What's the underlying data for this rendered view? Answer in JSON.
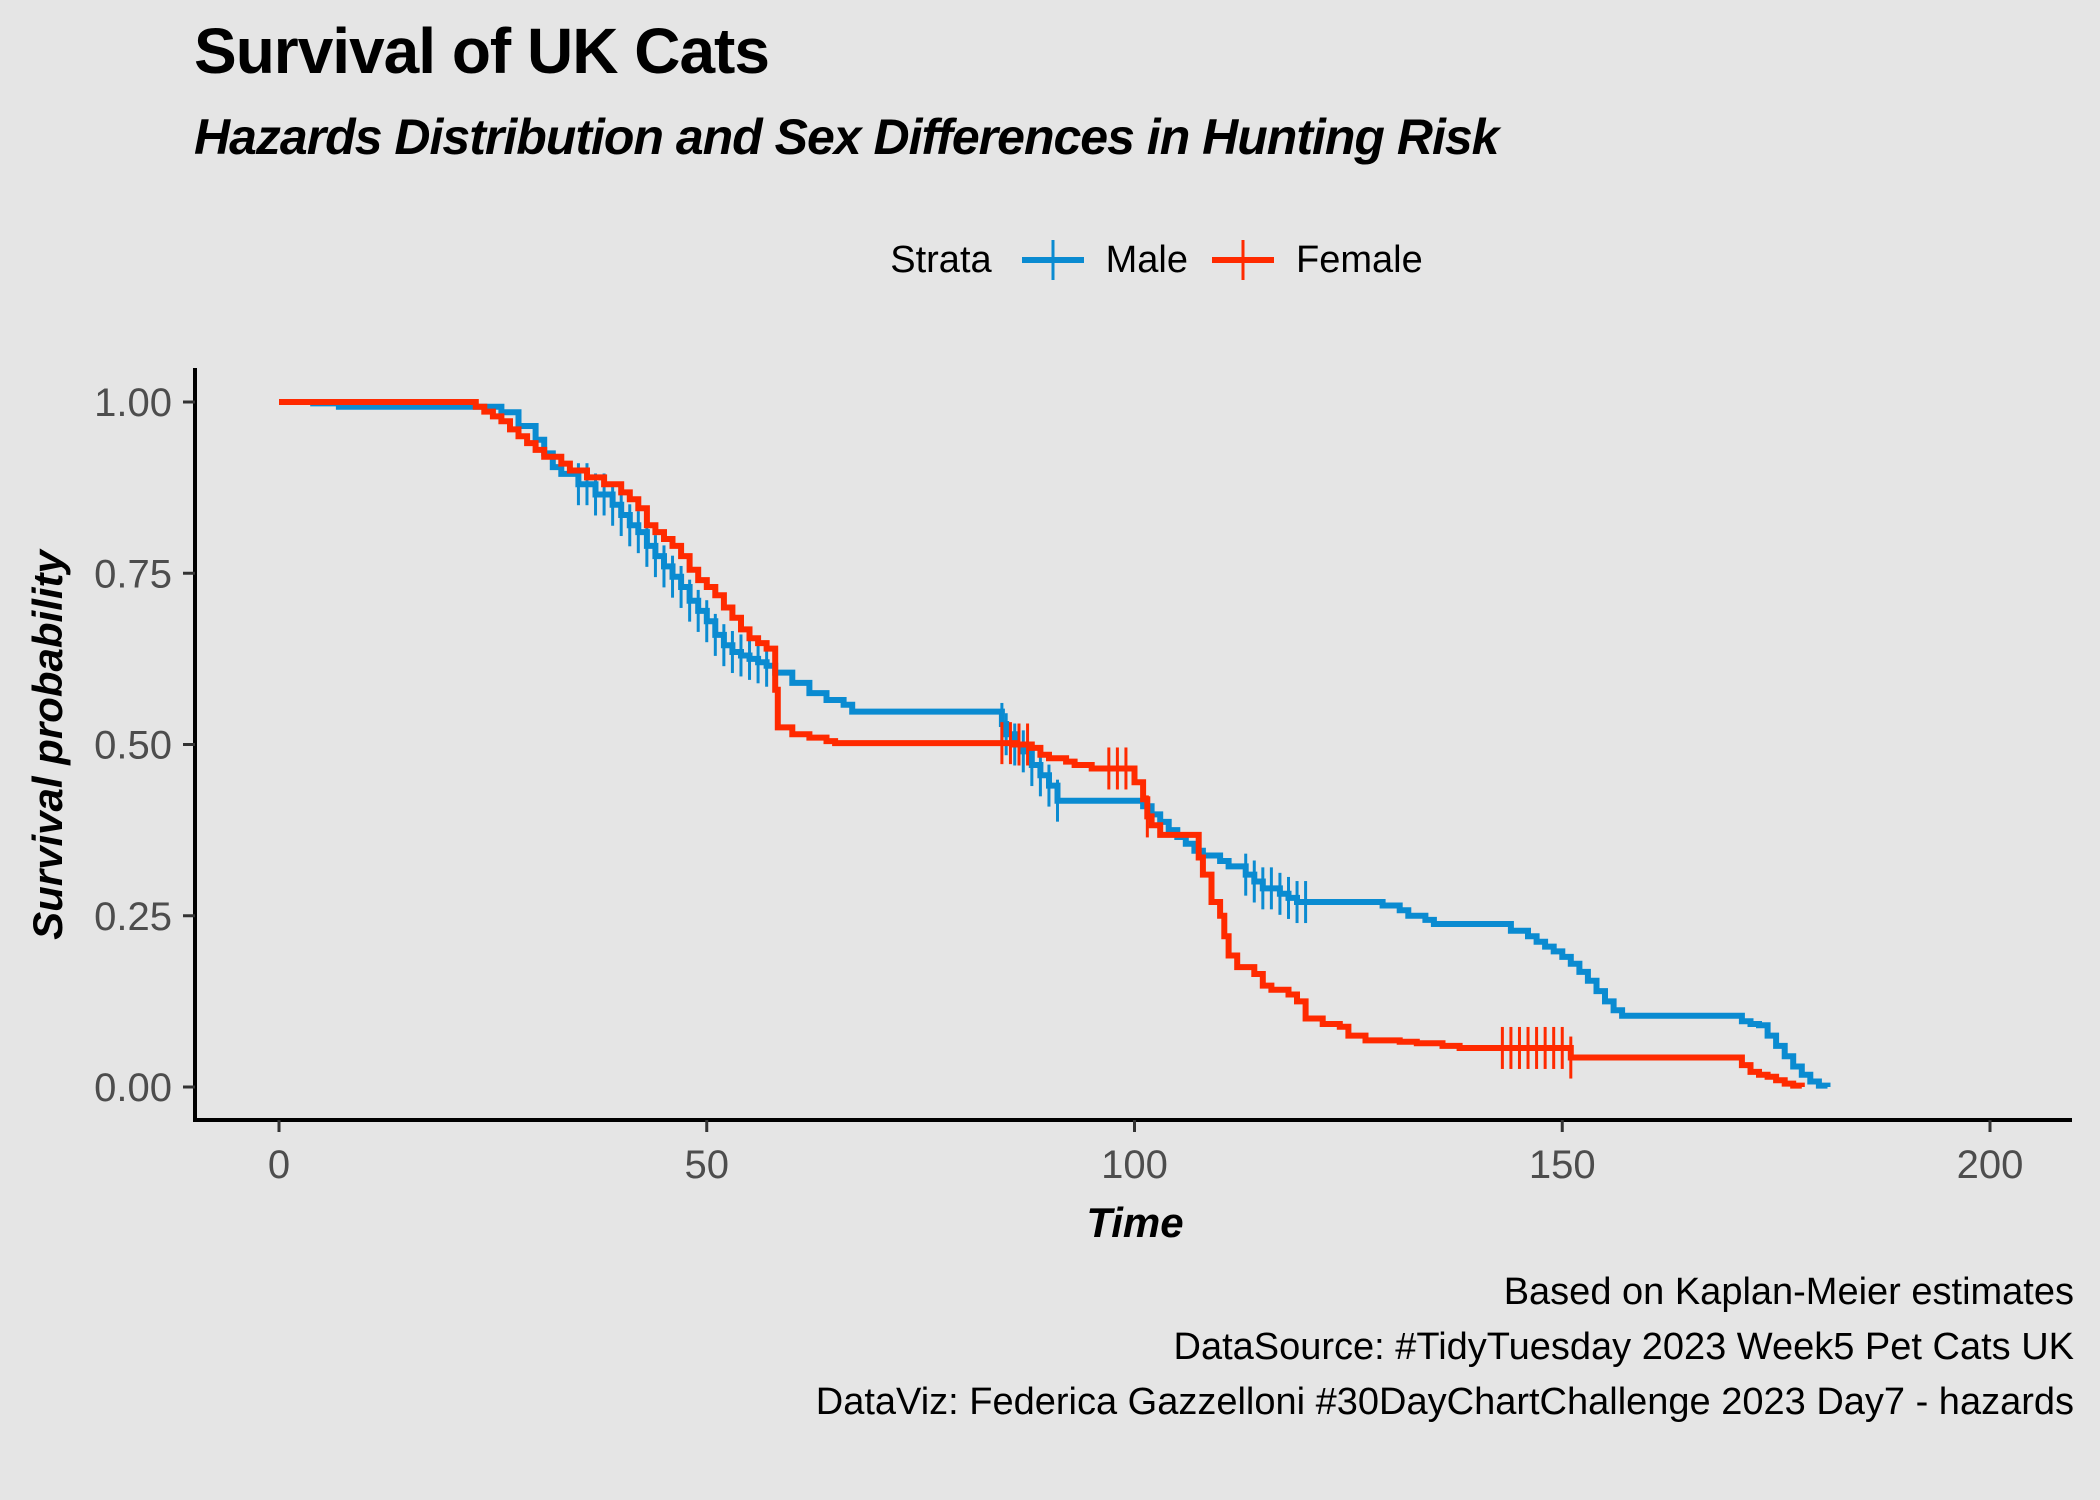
{
  "header": {
    "title": "Survival of UK Cats",
    "subtitle": "Hazards Distribution and Sex Differences in Hunting Risk"
  },
  "legend": {
    "title": "Strata",
    "items": [
      {
        "label": "Male",
        "color": "#0A8BD1"
      },
      {
        "label": "Female",
        "color": "#FF2A00"
      }
    ]
  },
  "caption": {
    "line1": "Based on Kaplan-Meier estimates",
    "line2": "DataSource: #TidyTuesday 2023 Week5 Pet Cats UK",
    "line3": "DataViz: Federica Gazzelloni #30DayChartChallenge 2023 Day7 - hazards"
  },
  "chart_data": {
    "type": "line",
    "title": "Survival of UK Cats",
    "subtitle": "Hazards Distribution and Sex Differences in Hunting Risk",
    "xlabel": "Time",
    "ylabel": "Survival probability",
    "xlim": [
      -10,
      210
    ],
    "ylim": [
      -0.05,
      1.05
    ],
    "x_ticks": [
      0,
      50,
      100,
      150,
      200
    ],
    "x_tick_labels": [
      "0",
      "50",
      "100",
      "150",
      "200"
    ],
    "y_ticks": [
      0,
      0.25,
      0.5,
      0.75,
      1
    ],
    "y_tick_labels": [
      "0.00",
      "0.25",
      "0.50",
      "0.75",
      "1.00"
    ],
    "grid": false,
    "legend_position": "top",
    "step": true,
    "series": [
      {
        "name": "Male",
        "color": "#0A8BD1",
        "points": [
          [
            0,
            1.0
          ],
          [
            4,
            0.998
          ],
          [
            7,
            0.993
          ],
          [
            22,
            0.993
          ],
          [
            26,
            0.985
          ],
          [
            28,
            0.965
          ],
          [
            30,
            0.945
          ],
          [
            31,
            0.925
          ],
          [
            32,
            0.905
          ],
          [
            33,
            0.895
          ],
          [
            35,
            0.88
          ],
          [
            37,
            0.865
          ],
          [
            39,
            0.85
          ],
          [
            40,
            0.835
          ],
          [
            41,
            0.82
          ],
          [
            42,
            0.81
          ],
          [
            43,
            0.79
          ],
          [
            44,
            0.775
          ],
          [
            45,
            0.76
          ],
          [
            46,
            0.745
          ],
          [
            47,
            0.73
          ],
          [
            48,
            0.71
          ],
          [
            49,
            0.695
          ],
          [
            50,
            0.68
          ],
          [
            51,
            0.66
          ],
          [
            52,
            0.645
          ],
          [
            53,
            0.635
          ],
          [
            54,
            0.63
          ],
          [
            55,
            0.625
          ],
          [
            56,
            0.62
          ],
          [
            57,
            0.615
          ],
          [
            58,
            0.605
          ],
          [
            60,
            0.59
          ],
          [
            62,
            0.575
          ],
          [
            64,
            0.565
          ],
          [
            66,
            0.558
          ],
          [
            67,
            0.548
          ],
          [
            84,
            0.548
          ],
          [
            84.5,
            0.53
          ],
          [
            85,
            0.515
          ],
          [
            86,
            0.5
          ],
          [
            87,
            0.49
          ],
          [
            88,
            0.47
          ],
          [
            89,
            0.455
          ],
          [
            90,
            0.44
          ],
          [
            91,
            0.418
          ],
          [
            100,
            0.418
          ],
          [
            101,
            0.41
          ],
          [
            102,
            0.398
          ],
          [
            103,
            0.387
          ],
          [
            104,
            0.375
          ],
          [
            105,
            0.365
          ],
          [
            106,
            0.355
          ],
          [
            107,
            0.345
          ],
          [
            108,
            0.338
          ],
          [
            110,
            0.33
          ],
          [
            111,
            0.322
          ],
          [
            113,
            0.31
          ],
          [
            114,
            0.3
          ],
          [
            115,
            0.29
          ],
          [
            117,
            0.282
          ],
          [
            118,
            0.276
          ],
          [
            119,
            0.27
          ],
          [
            128,
            0.27
          ],
          [
            129,
            0.265
          ],
          [
            131,
            0.258
          ],
          [
            132,
            0.25
          ],
          [
            134,
            0.244
          ],
          [
            135,
            0.238
          ],
          [
            143,
            0.238
          ],
          [
            144,
            0.228
          ],
          [
            146,
            0.22
          ],
          [
            147,
            0.212
          ],
          [
            148,
            0.205
          ],
          [
            149,
            0.198
          ],
          [
            150,
            0.19
          ],
          [
            151,
            0.18
          ],
          [
            152,
            0.168
          ],
          [
            153,
            0.155
          ],
          [
            154,
            0.14
          ],
          [
            155,
            0.125
          ],
          [
            156,
            0.112
          ],
          [
            157,
            0.104
          ],
          [
            170,
            0.104
          ],
          [
            171,
            0.096
          ],
          [
            172,
            0.092
          ],
          [
            173,
            0.09
          ],
          [
            174,
            0.075
          ],
          [
            175,
            0.06
          ],
          [
            176,
            0.045
          ],
          [
            177,
            0.03
          ],
          [
            178,
            0.018
          ],
          [
            179,
            0.008
          ],
          [
            180,
            0.002
          ],
          [
            181,
            0.0
          ]
        ],
        "censored_times": [
          35,
          36,
          37,
          38,
          39,
          40,
          41,
          42,
          43,
          44,
          45,
          46,
          47,
          48,
          49,
          50,
          51,
          52,
          53,
          54,
          55,
          56,
          57,
          84.5,
          85,
          86,
          87,
          88,
          89,
          90,
          91,
          113,
          114,
          115,
          116,
          117,
          118,
          119,
          120
        ]
      },
      {
        "name": "Female",
        "color": "#FF2A00",
        "points": [
          [
            0,
            1.0
          ],
          [
            22,
            1.0
          ],
          [
            23,
            0.993
          ],
          [
            24,
            0.986
          ],
          [
            25,
            0.979
          ],
          [
            26,
            0.972
          ],
          [
            27,
            0.96
          ],
          [
            28,
            0.95
          ],
          [
            29,
            0.94
          ],
          [
            30,
            0.93
          ],
          [
            31,
            0.92
          ],
          [
            33,
            0.91
          ],
          [
            34,
            0.9
          ],
          [
            36,
            0.89
          ],
          [
            38,
            0.88
          ],
          [
            40,
            0.868
          ],
          [
            41,
            0.858
          ],
          [
            42,
            0.845
          ],
          [
            43,
            0.82
          ],
          [
            44,
            0.81
          ],
          [
            45,
            0.8
          ],
          [
            46,
            0.79
          ],
          [
            47,
            0.775
          ],
          [
            48,
            0.755
          ],
          [
            49,
            0.74
          ],
          [
            50,
            0.73
          ],
          [
            51,
            0.718
          ],
          [
            52,
            0.7
          ],
          [
            53,
            0.685
          ],
          [
            54,
            0.668
          ],
          [
            55,
            0.655
          ],
          [
            56,
            0.648
          ],
          [
            57,
            0.64
          ],
          [
            58,
            0.58
          ],
          [
            58.3,
            0.525
          ],
          [
            60,
            0.515
          ],
          [
            62,
            0.51
          ],
          [
            64,
            0.505
          ],
          [
            65,
            0.502
          ],
          [
            84,
            0.502
          ],
          [
            86,
            0.5
          ],
          [
            88,
            0.495
          ],
          [
            89,
            0.485
          ],
          [
            90,
            0.48
          ],
          [
            92,
            0.475
          ],
          [
            93,
            0.47
          ],
          [
            95,
            0.465
          ],
          [
            99,
            0.465
          ],
          [
            100,
            0.445
          ],
          [
            101,
            0.42
          ],
          [
            101.5,
            0.395
          ],
          [
            102,
            0.382
          ],
          [
            103,
            0.368
          ],
          [
            107,
            0.368
          ],
          [
            107.5,
            0.335
          ],
          [
            108,
            0.31
          ],
          [
            109,
            0.27
          ],
          [
            110,
            0.25
          ],
          [
            110.5,
            0.22
          ],
          [
            111,
            0.192
          ],
          [
            112,
            0.175
          ],
          [
            114,
            0.165
          ],
          [
            115,
            0.148
          ],
          [
            116,
            0.142
          ],
          [
            118,
            0.135
          ],
          [
            119,
            0.125
          ],
          [
            120,
            0.1
          ],
          [
            122,
            0.092
          ],
          [
            124,
            0.088
          ],
          [
            125,
            0.075
          ],
          [
            127,
            0.068
          ],
          [
            131,
            0.066
          ],
          [
            133,
            0.064
          ],
          [
            136,
            0.06
          ],
          [
            138,
            0.057
          ],
          [
            150,
            0.057
          ],
          [
            151,
            0.043
          ],
          [
            170,
            0.043
          ],
          [
            171,
            0.032
          ],
          [
            172,
            0.022
          ],
          [
            173,
            0.018
          ],
          [
            174,
            0.015
          ],
          [
            175,
            0.01
          ],
          [
            176,
            0.005
          ],
          [
            177,
            0.002
          ],
          [
            178,
            0.0
          ]
        ],
        "censored_times": [
          84.5,
          85.5,
          86.5,
          87.5,
          97,
          98,
          99,
          101.5,
          143,
          144,
          145,
          146,
          147,
          148,
          149,
          150,
          151
        ]
      }
    ]
  }
}
